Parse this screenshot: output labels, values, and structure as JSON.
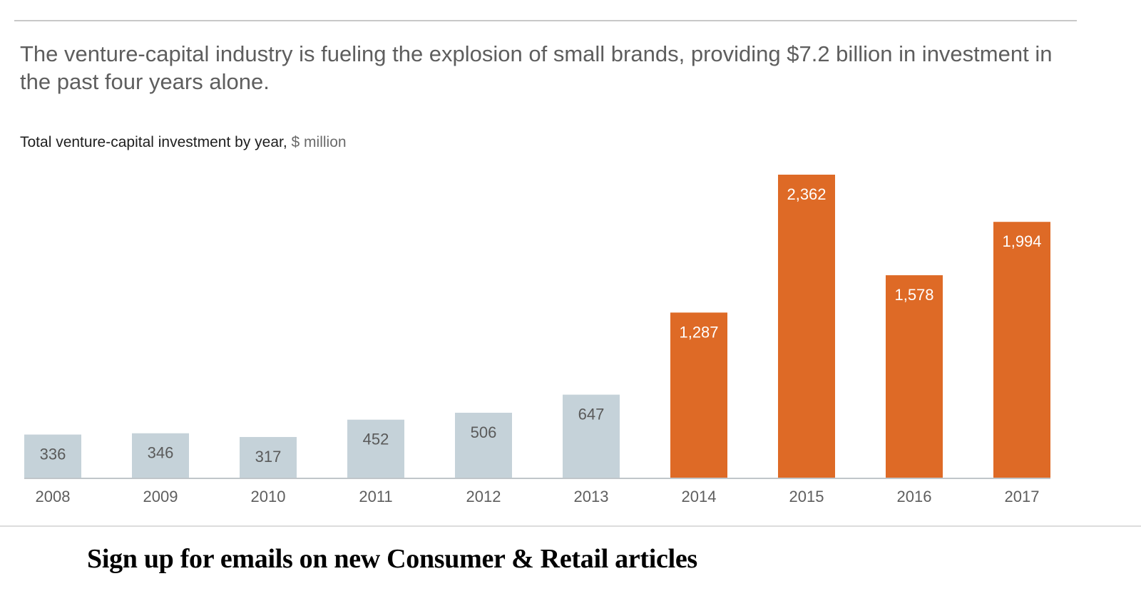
{
  "headline": "The venture-capital industry is fueling the explosion of small brands, providing $7.2 billion in investment in the past four years alone.",
  "footer": {
    "signup_label": "Sign up for emails on new Consumer & Retail articles"
  },
  "colors": {
    "highlight": "#DE6A26",
    "base": "#C5D2D9",
    "axis": "#c0c6ca",
    "label_dark": "#5a5a5a",
    "label_light": "#ffffff",
    "tick": "#5e5e5e"
  },
  "chart_data": {
    "type": "bar",
    "title": "Total venture-capital investment by year,",
    "unit": "$ million",
    "xlabel": "",
    "ylabel": "",
    "categories": [
      "2008",
      "2009",
      "2010",
      "2011",
      "2012",
      "2013",
      "2014",
      "2015",
      "2016",
      "2017"
    ],
    "values": [
      336,
      346,
      317,
      452,
      506,
      647,
      1287,
      2362,
      1578,
      1994
    ],
    "value_labels": [
      "336",
      "346",
      "317",
      "452",
      "506",
      "647",
      "1,287",
      "2,362",
      "1,578",
      "1,994"
    ],
    "highlighted": [
      false,
      false,
      false,
      false,
      false,
      false,
      true,
      true,
      true,
      true
    ],
    "ylim": [
      0,
      2362
    ],
    "grid": false,
    "legend": "none"
  }
}
